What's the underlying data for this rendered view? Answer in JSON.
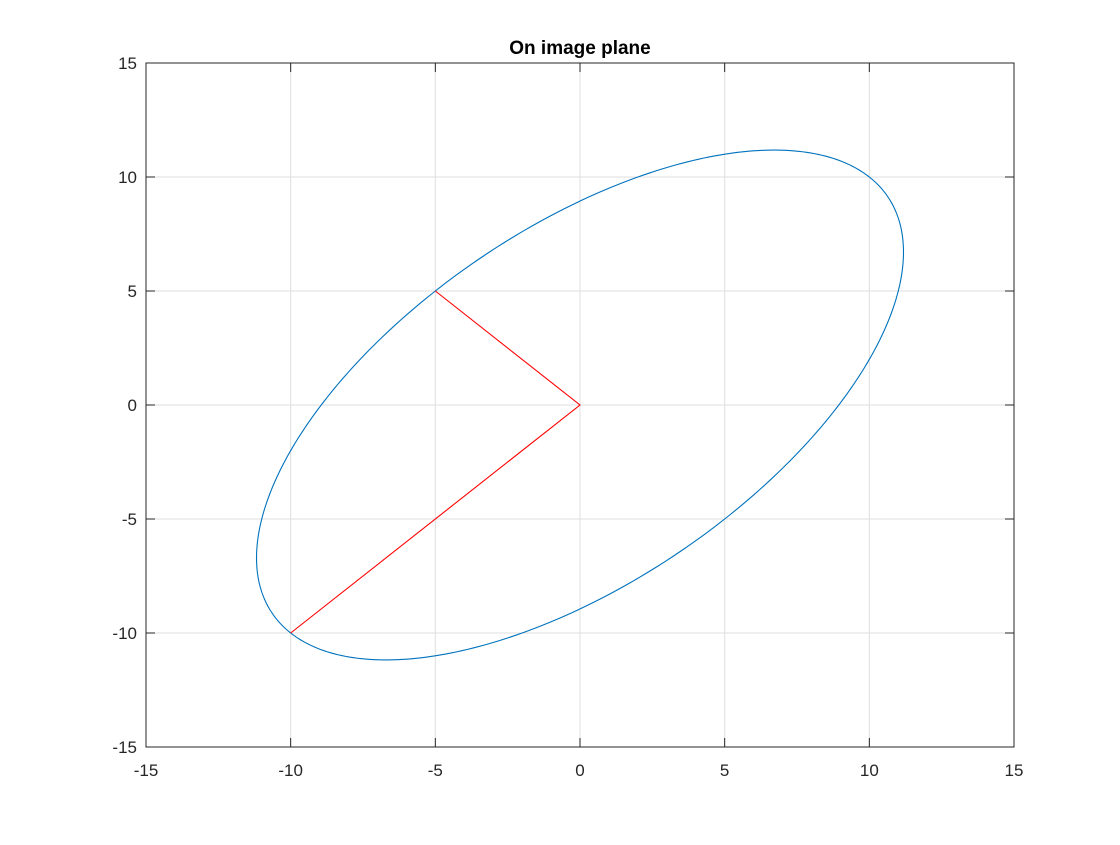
{
  "chart_data": {
    "type": "line",
    "title": "On image plane",
    "xlabel": "",
    "ylabel": "",
    "xlim": [
      -15,
      15
    ],
    "ylim": [
      -15,
      15
    ],
    "xticks": [
      -15,
      -10,
      -5,
      0,
      5,
      10,
      15
    ],
    "yticks": [
      -15,
      -10,
      -5,
      0,
      5,
      10,
      15
    ],
    "grid": true,
    "legend": "none",
    "series": [
      {
        "kind": "ellipse",
        "color": "#0072BD",
        "center": [
          0,
          0
        ],
        "vertices": [
          [
            -10,
            -10
          ],
          [
            10,
            10
          ]
        ],
        "co_vertices": [
          [
            -5,
            5
          ],
          [
            5,
            -5
          ]
        ]
      },
      {
        "kind": "polyline",
        "color": "#FF0000",
        "x": [
          -5,
          0,
          -10
        ],
        "y": [
          5,
          0,
          -10
        ]
      }
    ]
  }
}
